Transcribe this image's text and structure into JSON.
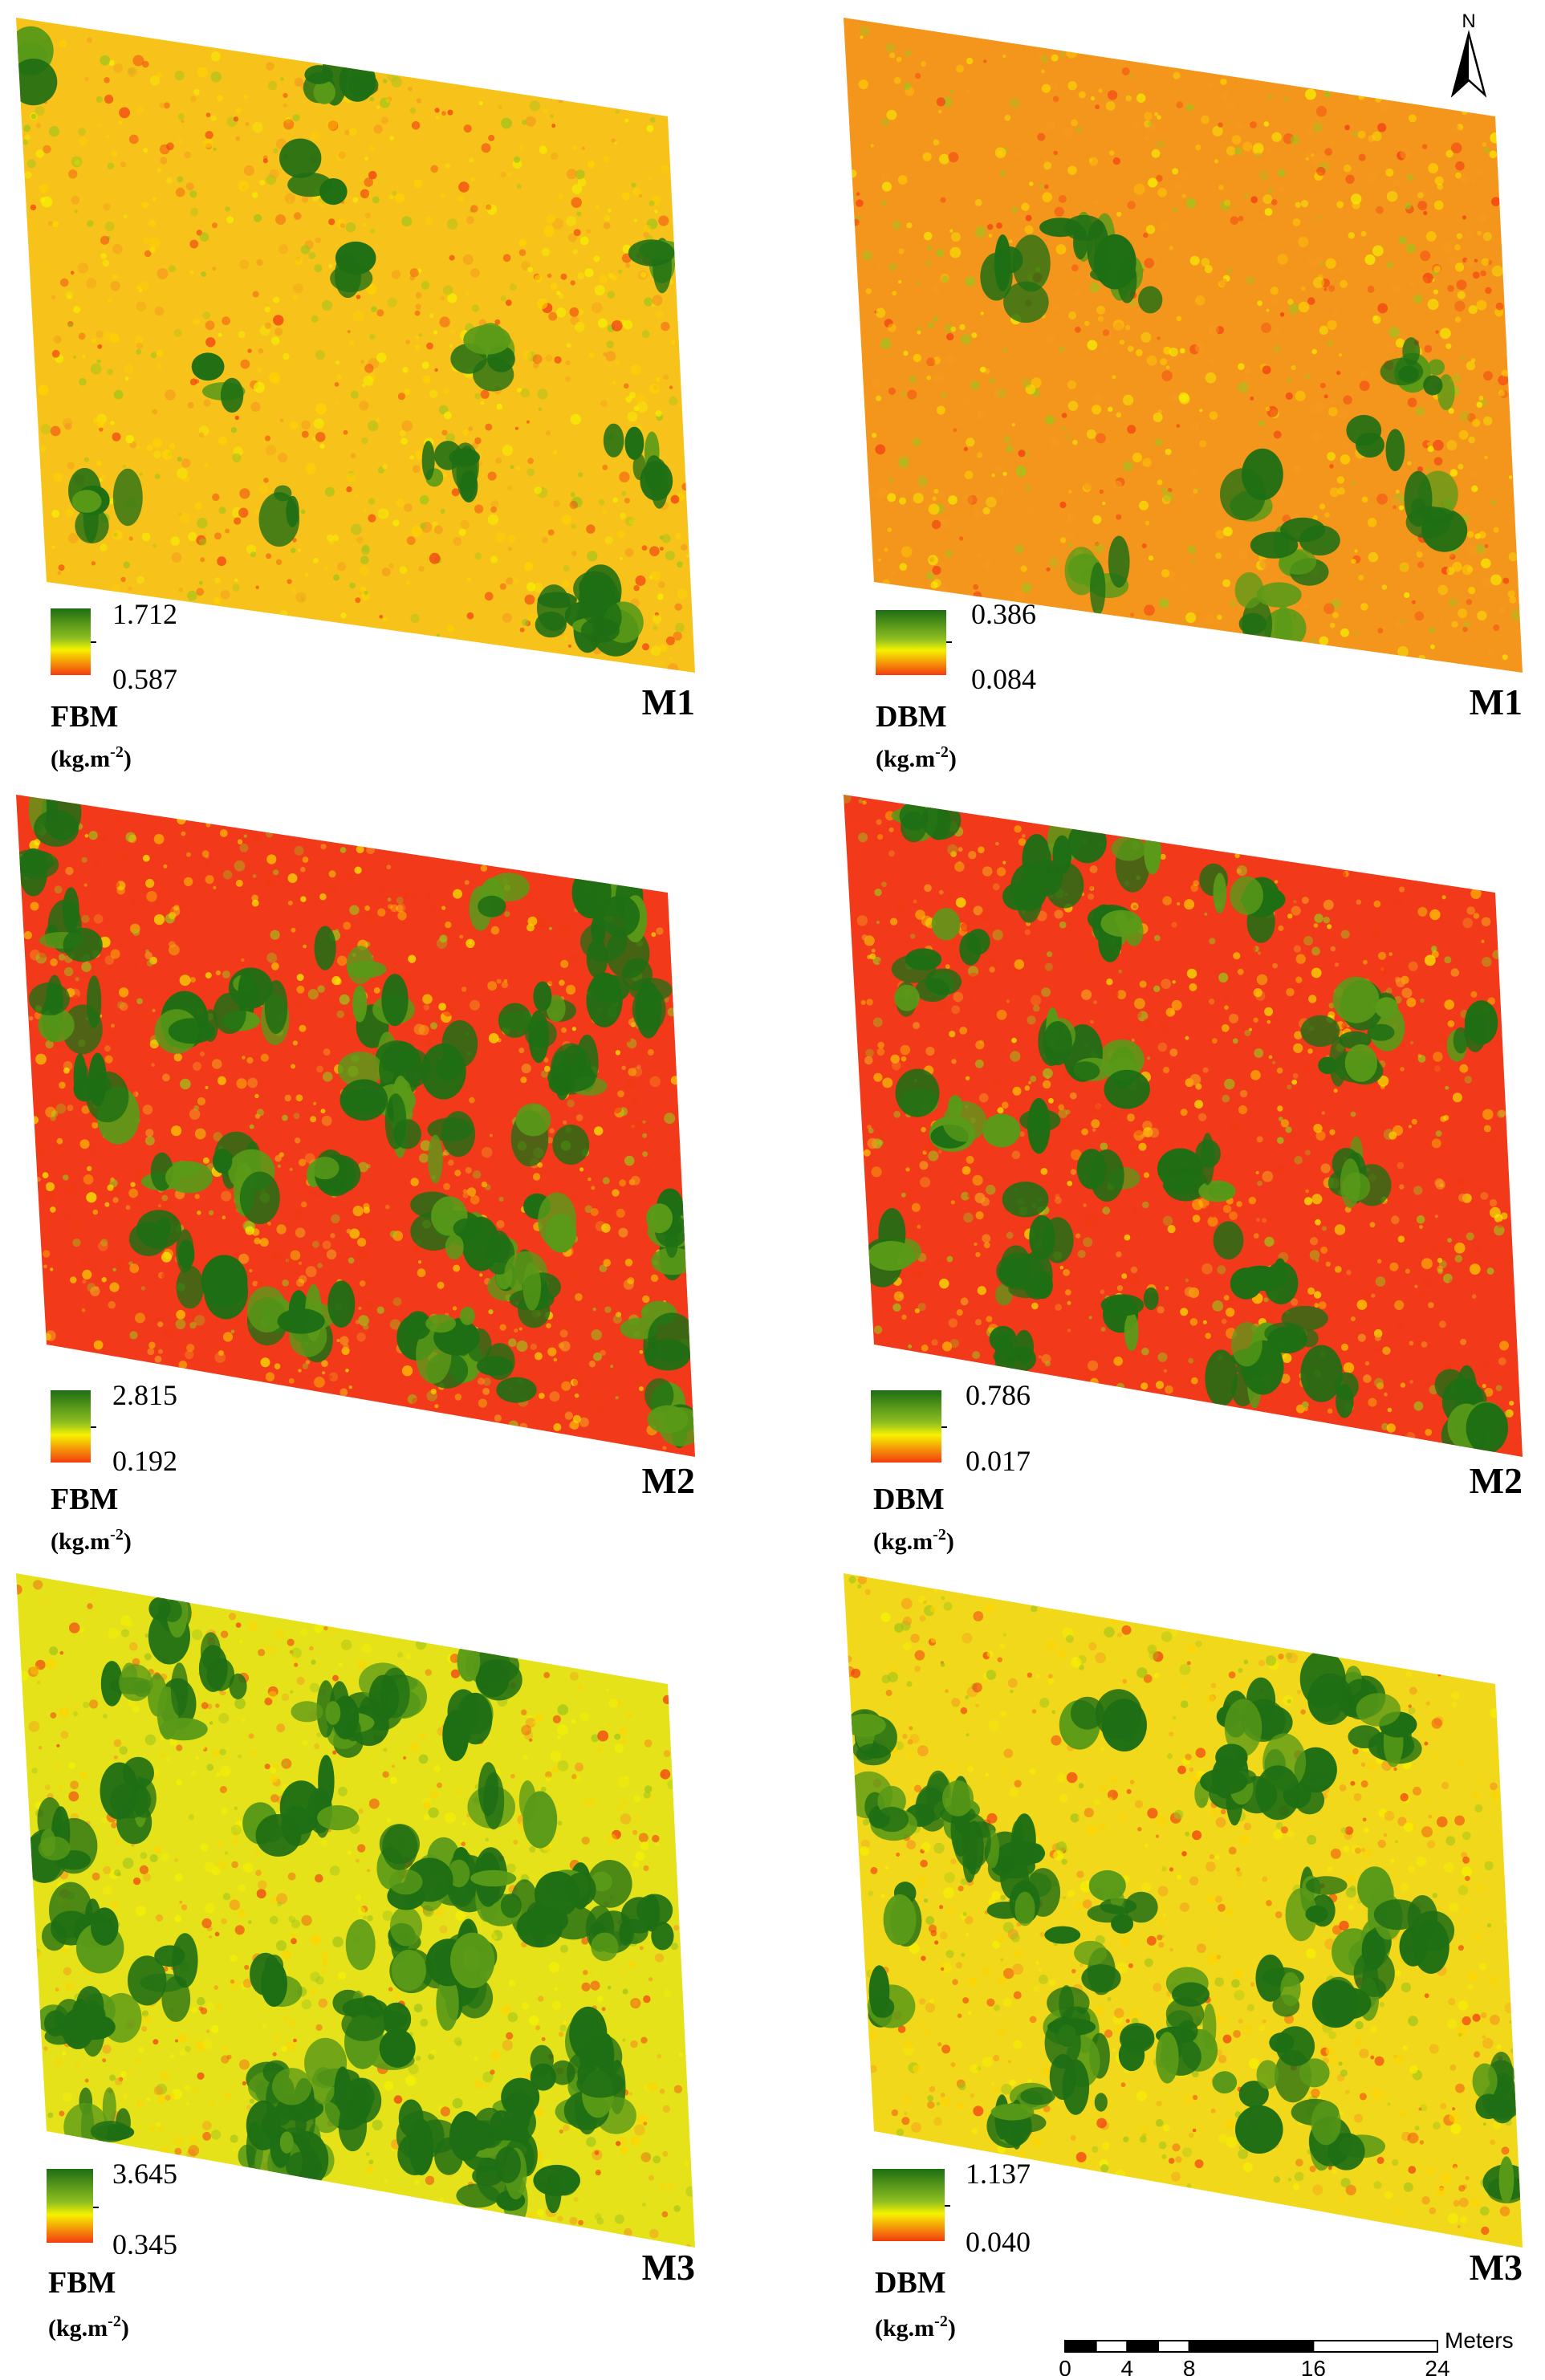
{
  "north_arrow": {
    "label": "N"
  },
  "panels": [
    {
      "id": "fbm-m1",
      "variable": "FBM",
      "unit": "(kg.m",
      "unit_exp": "-2",
      "unit_close": ")",
      "month": "M1",
      "legend_max": "1.712",
      "legend_min": "0.587",
      "dominant": "yellow-orange",
      "green_share": 0.1
    },
    {
      "id": "dbm-m1",
      "variable": "DBM",
      "unit": "(kg.m",
      "unit_exp": "-2",
      "unit_close": ")",
      "month": "M1",
      "legend_max": "0.386",
      "legend_min": "0.084",
      "dominant": "orange",
      "green_share": 0.08
    },
    {
      "id": "fbm-m2",
      "variable": "FBM",
      "unit": "(kg.m",
      "unit_exp": "-2",
      "unit_close": ")",
      "month": "M2",
      "legend_max": "2.815",
      "legend_min": "0.192",
      "dominant": "red",
      "green_share": 0.3
    },
    {
      "id": "dbm-m2",
      "variable": "DBM",
      "unit": "(kg.m",
      "unit_exp": "-2",
      "unit_close": ")",
      "month": "M2",
      "legend_max": "0.786",
      "legend_min": "0.017",
      "dominant": "red",
      "green_share": 0.22
    },
    {
      "id": "fbm-m3",
      "variable": "FBM",
      "unit": "(kg.m",
      "unit_exp": "-2",
      "unit_close": ")",
      "month": "M3",
      "legend_max": "3.645",
      "legend_min": "0.345",
      "dominant": "yellow-green",
      "green_share": 0.4
    },
    {
      "id": "dbm-m3",
      "variable": "DBM",
      "unit": "(kg.m",
      "unit_exp": "-2",
      "unit_close": ")",
      "month": "M3",
      "legend_max": "1.137",
      "legend_min": "0.040",
      "dominant": "yellow",
      "green_share": 0.28
    }
  ],
  "scale_bar": {
    "unit": "Meters",
    "ticks": [
      {
        "value": 0,
        "label": "0"
      },
      {
        "value": 4,
        "label": "4"
      },
      {
        "value": 8,
        "label": "8"
      },
      {
        "value": 16,
        "label": "16"
      },
      {
        "value": 24,
        "label": "24"
      }
    ],
    "max_value": 24
  },
  "colors": {
    "green": "#1e6e14",
    "yellow": "#f6f200",
    "orange": "#f59a1e",
    "red": "#f23a12"
  }
}
